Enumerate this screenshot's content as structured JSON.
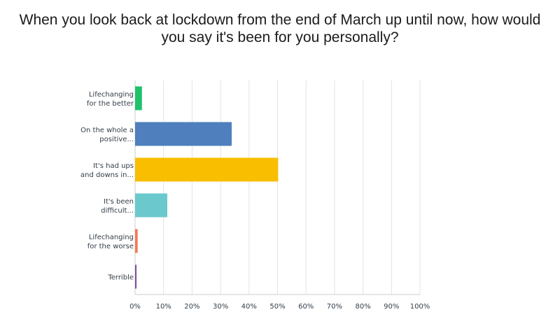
{
  "chart_data": {
    "type": "bar",
    "orientation": "horizontal",
    "title": "When you look back at lockdown from the end of March up until now, how would you say it's been for you personally?",
    "categories": [
      [
        "Lifechanging",
        "for the better"
      ],
      [
        "On the whole a",
        "positive..."
      ],
      [
        "It's had ups",
        "and downs in..."
      ],
      [
        "It's been",
        "difficult..."
      ],
      [
        "Lifechanging",
        "for the worse"
      ],
      [
        "Terrible"
      ]
    ],
    "values": [
      2.4,
      33.9,
      50.2,
      11.3,
      0.9,
      0.5
    ],
    "colors": [
      "#1fc26b",
      "#4f7fbd",
      "#f9be00",
      "#6bc8cd",
      "#f47a52",
      "#7b4f9d"
    ],
    "xlim": [
      0,
      100
    ],
    "xticks": [
      "0%",
      "10%",
      "20%",
      "30%",
      "40%",
      "50%",
      "60%",
      "70%",
      "80%",
      "90%",
      "100%"
    ],
    "xlabel": "",
    "ylabel": "",
    "grid": true,
    "legend": false
  }
}
